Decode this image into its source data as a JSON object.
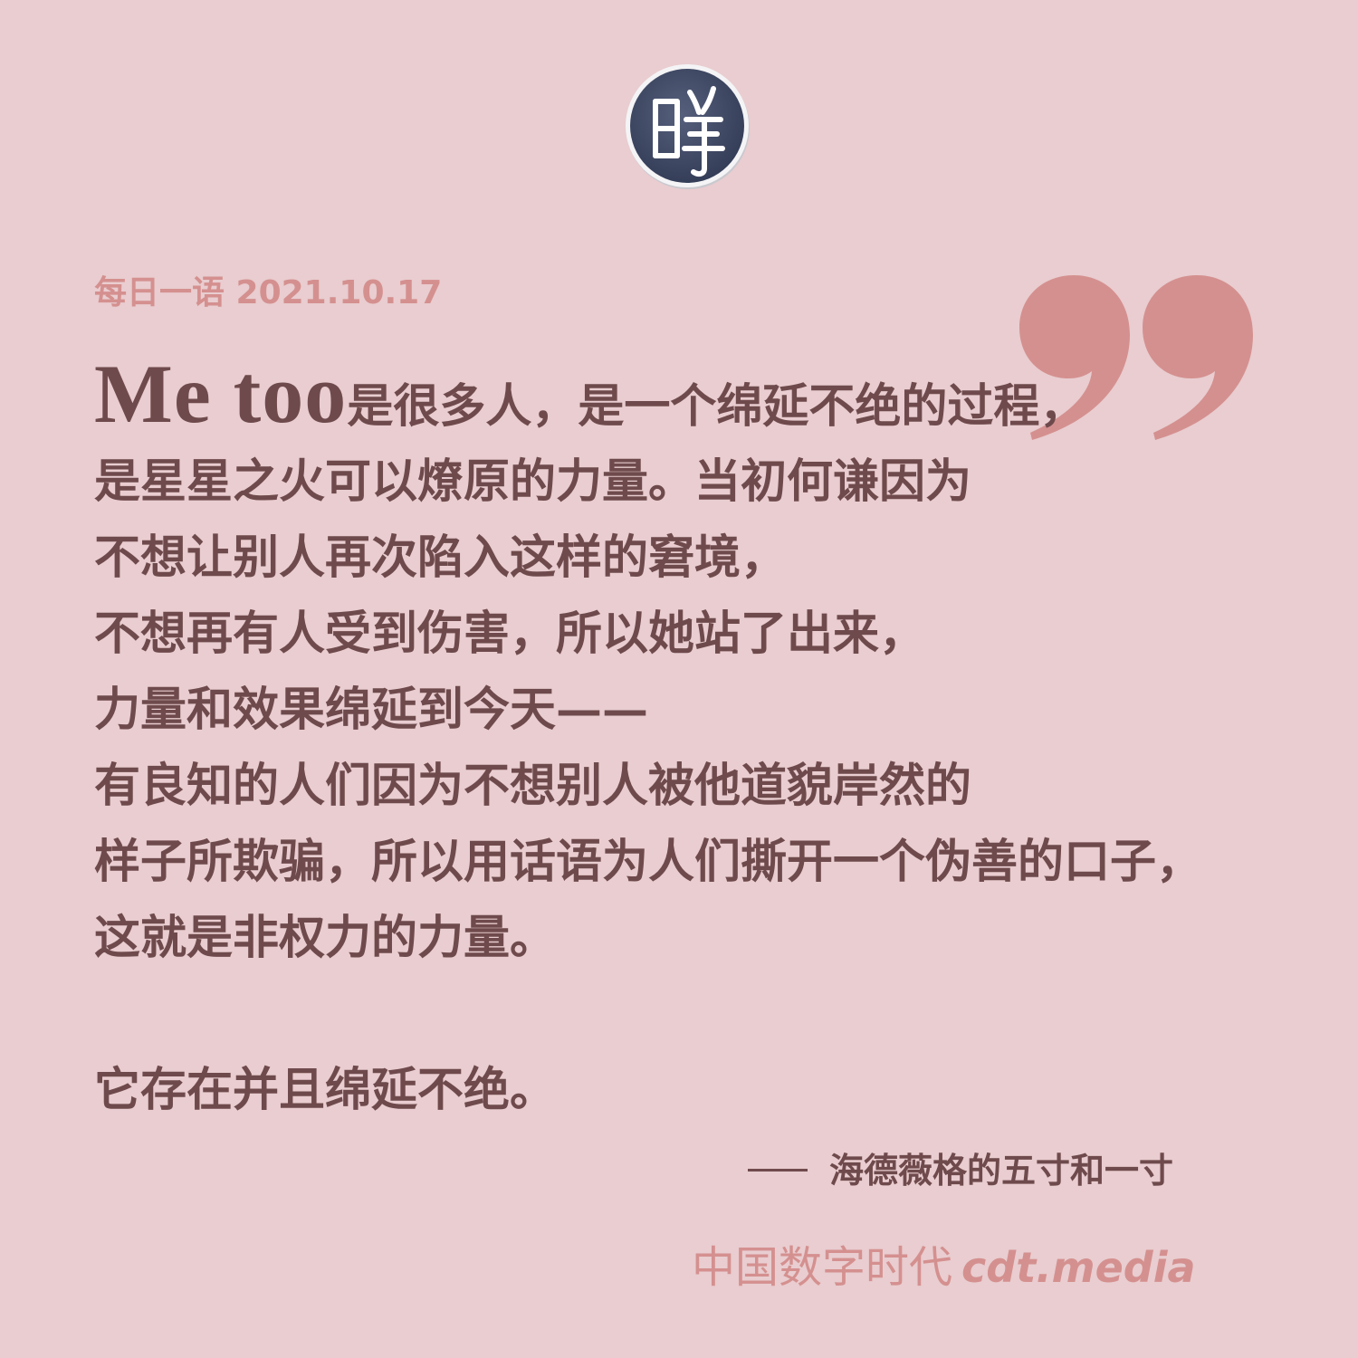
{
  "header": {
    "logo_icon": "cdt-seal-logo",
    "logo_glyph": "時",
    "date_label": "每日一语 2021.10.17"
  },
  "quote": {
    "mark_icon": "closing-quote-icon",
    "head": "Me too",
    "first_line_rest": "是很多人，是一个绵延不绝的过程，",
    "lines": [
      "是星星之火可以燎原的力量。当初何谦因为",
      "不想让别人再次陷入这样的窘境，",
      "不想再有人受到伤害，所以她站了出来，",
      "力量和效果绵延到今天——",
      "有良知的人们因为不想别人被他道貌岸然的",
      "样子所欺骗，所以用话语为人们撕开一个伪善的口子，",
      "这就是非权力的力量。"
    ],
    "closing_line": "它存在并且绵延不绝。"
  },
  "attribution": {
    "source": "海德薇格的五寸和一寸"
  },
  "footer": {
    "brand_cn": "中国数字时代",
    "brand_domain": "cdt.media"
  },
  "colors": {
    "background": "#e9cdd0",
    "text": "#6f4a4c",
    "accent": "#d4908f",
    "logo_fill": "#3f4a66"
  }
}
